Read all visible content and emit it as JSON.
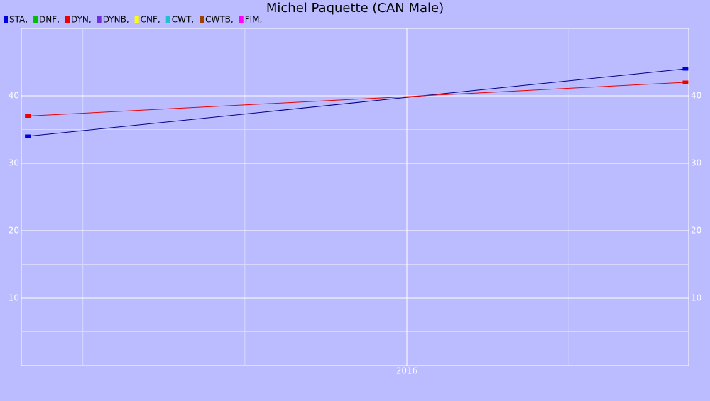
{
  "chart_data": {
    "type": "line",
    "title": "Michel Paquette (CAN Male)",
    "x": [
      2014.83,
      2016.86
    ],
    "xlim": [
      2014.81,
      2016.87
    ],
    "xticks": [
      2016
    ],
    "x_minor_ticks": [
      2015,
      2015.5,
      2016.5
    ],
    "ylim": [
      0,
      50
    ],
    "yticks": [
      10,
      20,
      30,
      40
    ],
    "y_minor_ticks": [
      5,
      15,
      25,
      35,
      45
    ],
    "grid": true,
    "right_axis_labels": true,
    "legend": "top-left",
    "series": [
      {
        "name": "STA,",
        "color": "#0000dd",
        "line_color": "#000088",
        "values": [
          34,
          44
        ]
      },
      {
        "name": "DNF,",
        "color": "#00c000",
        "values": [
          null,
          null
        ]
      },
      {
        "name": "DYN,",
        "color": "#ee0000",
        "line_color": "#ee0000",
        "values": [
          37,
          42
        ]
      },
      {
        "name": "DYNB,",
        "color": "#7030e0",
        "values": [
          null,
          null
        ]
      },
      {
        "name": "CNF,",
        "color": "#ffff00",
        "values": [
          null,
          null
        ]
      },
      {
        "name": "CWT,",
        "color": "#20c0d0",
        "values": [
          null,
          null
        ]
      },
      {
        "name": "CWTB,",
        "color": "#a04000",
        "values": [
          null,
          null
        ]
      },
      {
        "name": "FIM,",
        "color": "#ff00ff",
        "values": [
          null,
          null
        ]
      }
    ]
  }
}
